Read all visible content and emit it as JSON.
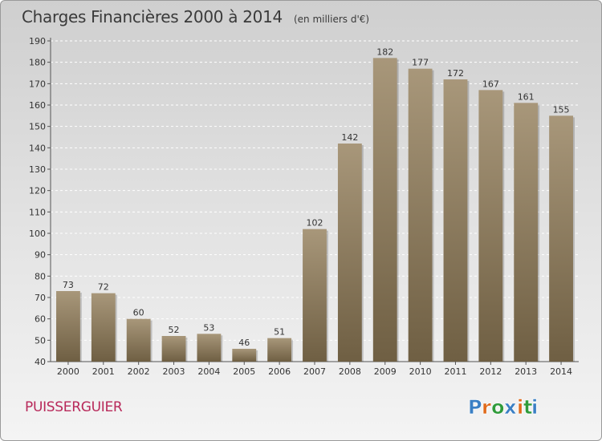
{
  "header": {
    "title": "Charges Financières 2000 à 2014",
    "subtitle": "(en milliers d'€)"
  },
  "footer": {
    "town": "PUISSERGUIER",
    "logo_text": "Proxiti"
  },
  "colors": {
    "bar_light": "#a8977a",
    "bar_dark": "#6f5f43",
    "town": "#b8295a",
    "logo_letters": [
      "#3a7fc4",
      "#e06a1b",
      "#2f9b3a",
      "#3a7fc4",
      "#e06a1b",
      "#2f9b3a",
      "#3a7fc4"
    ]
  },
  "chart_data": {
    "type": "bar",
    "categories": [
      "2000",
      "2001",
      "2002",
      "2003",
      "2004",
      "2005",
      "2006",
      "2007",
      "2008",
      "2009",
      "2010",
      "2011",
      "2012",
      "2013",
      "2014"
    ],
    "values": [
      73,
      72,
      60,
      52,
      53,
      46,
      51,
      102,
      142,
      182,
      177,
      172,
      167,
      161,
      155
    ],
    "ylim": [
      40,
      190
    ],
    "yticks": [
      40,
      50,
      60,
      70,
      80,
      90,
      100,
      110,
      120,
      130,
      140,
      150,
      160,
      170,
      180,
      190
    ],
    "grid": true,
    "data_labels": true
  }
}
